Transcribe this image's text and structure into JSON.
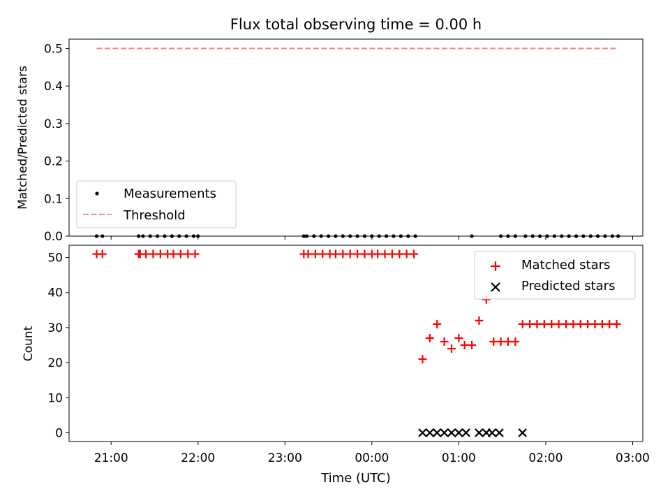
{
  "chart_data": [
    {
      "type": "scatter",
      "title": "Flux total observing time = 0.00 h",
      "xlabel": "",
      "ylabel": "Matched/Predicted stars",
      "xlim": [
        "20:31",
        "03:07"
      ],
      "ylim": [
        0,
        0.525
      ],
      "y_ticks": [
        0.0,
        0.1,
        0.2,
        0.3,
        0.4,
        0.5
      ],
      "y_tick_labels": [
        "0.0",
        "0.1",
        "0.2",
        "0.3",
        "0.4",
        "0.5"
      ],
      "legend": {
        "position": "lower-left",
        "entries": [
          "Measurements",
          "Threshold"
        ]
      },
      "series": [
        {
          "name": "Measurements",
          "marker": "dot",
          "color": "#000000",
          "x": [
            "20:50",
            "20:54",
            "21:19",
            "21:22",
            "21:27",
            "21:32",
            "21:37",
            "21:42",
            "21:47",
            "21:52",
            "21:57",
            "22:00",
            "23:13",
            "23:15",
            "23:20",
            "23:25",
            "23:30",
            "23:35",
            "23:40",
            "23:45",
            "23:50",
            "23:55",
            "00:00",
            "00:05",
            "00:10",
            "00:15",
            "00:20",
            "00:25",
            "00:30",
            "01:09",
            "01:29",
            "01:34",
            "01:39",
            "01:46",
            "01:51",
            "01:56",
            "02:01",
            "02:06",
            "02:11",
            "02:16",
            "02:21",
            "02:26",
            "02:31",
            "02:36",
            "02:41",
            "02:46",
            "02:50"
          ],
          "y": [
            0,
            0,
            0,
            0,
            0,
            0,
            0,
            0,
            0,
            0,
            0,
            0,
            0,
            0,
            0,
            0,
            0,
            0,
            0,
            0,
            0,
            0,
            0,
            0,
            0,
            0,
            0,
            0,
            0,
            0,
            0,
            0,
            0,
            0,
            0,
            0,
            0,
            0,
            0,
            0,
            0,
            0,
            0,
            0,
            0,
            0,
            0
          ]
        },
        {
          "name": "Threshold",
          "type": "line",
          "style": "dashed",
          "color": "#ff8080",
          "x": [
            "20:50",
            "02:50"
          ],
          "y": [
            0.5,
            0.5
          ]
        }
      ]
    },
    {
      "type": "scatter",
      "title": "",
      "xlabel": "Time (UTC)",
      "ylabel": "Count",
      "xlim": [
        "20:31",
        "03:07"
      ],
      "ylim": [
        -2.5,
        53.5
      ],
      "y_ticks": [
        0,
        10,
        20,
        30,
        40,
        50
      ],
      "y_tick_labels": [
        "0",
        "10",
        "20",
        "30",
        "40",
        "50"
      ],
      "x_ticks": [
        "21:00",
        "22:00",
        "23:00",
        "00:00",
        "01:00",
        "02:00",
        "03:00"
      ],
      "x_tick_labels": [
        "21:00",
        "22:00",
        "23:00",
        "00:00",
        "01:00",
        "02:00",
        "03:00"
      ],
      "legend": {
        "position": "upper-right",
        "entries": [
          "Matched stars",
          "Predicted stars"
        ]
      },
      "series": [
        {
          "name": "Matched stars",
          "marker": "plus",
          "color": "#ff0000",
          "x": [
            "20:50",
            "20:54",
            "21:19",
            "21:20",
            "21:24",
            "21:29",
            "21:34",
            "21:39",
            "21:43",
            "21:48",
            "21:53",
            "21:58",
            "23:13",
            "23:16",
            "23:21",
            "23:26",
            "23:31",
            "23:35",
            "23:40",
            "23:45",
            "23:50",
            "23:55",
            "00:00",
            "00:04",
            "00:09",
            "00:14",
            "00:19",
            "00:24",
            "00:29",
            "00:35",
            "00:40",
            "00:45",
            "00:50",
            "00:55",
            "01:00",
            "01:04",
            "01:09",
            "01:14",
            "01:19",
            "01:24",
            "01:29",
            "01:34",
            "01:39",
            "01:44",
            "01:49",
            "01:54",
            "01:59",
            "02:04",
            "02:09",
            "02:14",
            "02:19",
            "02:24",
            "02:29",
            "02:34",
            "02:39",
            "02:44",
            "02:49"
          ],
          "y": [
            51,
            51,
            51,
            51,
            51,
            51,
            51,
            51,
            51,
            51,
            51,
            51,
            51,
            51,
            51,
            51,
            51,
            51,
            51,
            51,
            51,
            51,
            51,
            51,
            51,
            51,
            51,
            51,
            51,
            21,
            27,
            31,
            26,
            24,
            27,
            25,
            25,
            32,
            38,
            26,
            26,
            26,
            26,
            31,
            31,
            31,
            31,
            31,
            31,
            31,
            31,
            31,
            31,
            31,
            31,
            31,
            31
          ]
        },
        {
          "name": "Predicted stars",
          "marker": "x",
          "color": "#000000",
          "x": [
            "00:35",
            "00:40",
            "00:45",
            "00:50",
            "00:55",
            "01:00",
            "01:05",
            "01:14",
            "01:19",
            "01:23",
            "01:28",
            "01:44"
          ],
          "y": [
            0,
            0,
            0,
            0,
            0,
            0,
            0,
            0,
            0,
            0,
            0,
            0
          ]
        }
      ]
    }
  ]
}
